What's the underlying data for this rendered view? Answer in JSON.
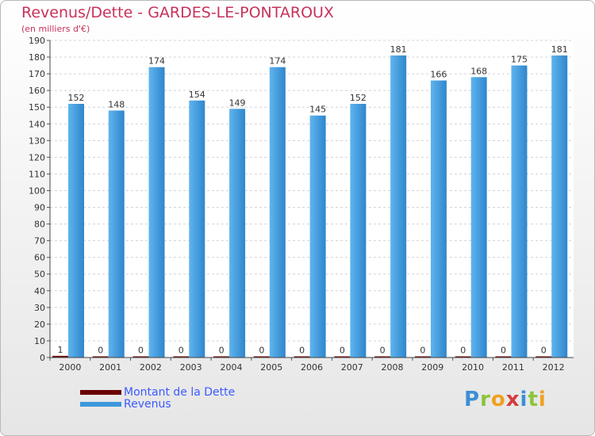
{
  "header": {
    "title": "Revenus/Dette - GARDES-LE-PONTAROUX",
    "subtitle": "(en milliers d'€)"
  },
  "chart_data": {
    "type": "bar",
    "title": "Revenus/Dette - GARDES-LE-PONTAROUX",
    "ylabel": "(en milliers d'€)",
    "xlabel": "",
    "ylim": [
      0,
      190
    ],
    "ytick_step": 10,
    "grid": true,
    "categories": [
      "2000",
      "2001",
      "2002",
      "2003",
      "2004",
      "2005",
      "2006",
      "2007",
      "2008",
      "2009",
      "2010",
      "2011",
      "2012"
    ],
    "series": [
      {
        "name": "Montant de la Dette",
        "color": "#6b0000",
        "values": [
          1,
          0,
          0,
          0,
          0,
          0,
          0,
          0,
          0,
          0,
          0,
          0,
          0
        ]
      },
      {
        "name": "Revenus",
        "color": "#3d98db",
        "values": [
          152,
          148,
          174,
          154,
          149,
          174,
          145,
          152,
          181,
          166,
          168,
          175,
          181
        ]
      }
    ]
  },
  "logo": {
    "letters": [
      {
        "char": "P",
        "color": "#3c8fd6"
      },
      {
        "char": "r",
        "color": "#8cc43c"
      },
      {
        "char": "o",
        "color": "#f0a020"
      },
      {
        "char": "x",
        "color": "#d63c3c"
      },
      {
        "char": "i",
        "color": "#3c8fd6"
      },
      {
        "char": "t",
        "color": "#8cc43c"
      },
      {
        "char": "i",
        "color": "#f0a020"
      }
    ]
  }
}
